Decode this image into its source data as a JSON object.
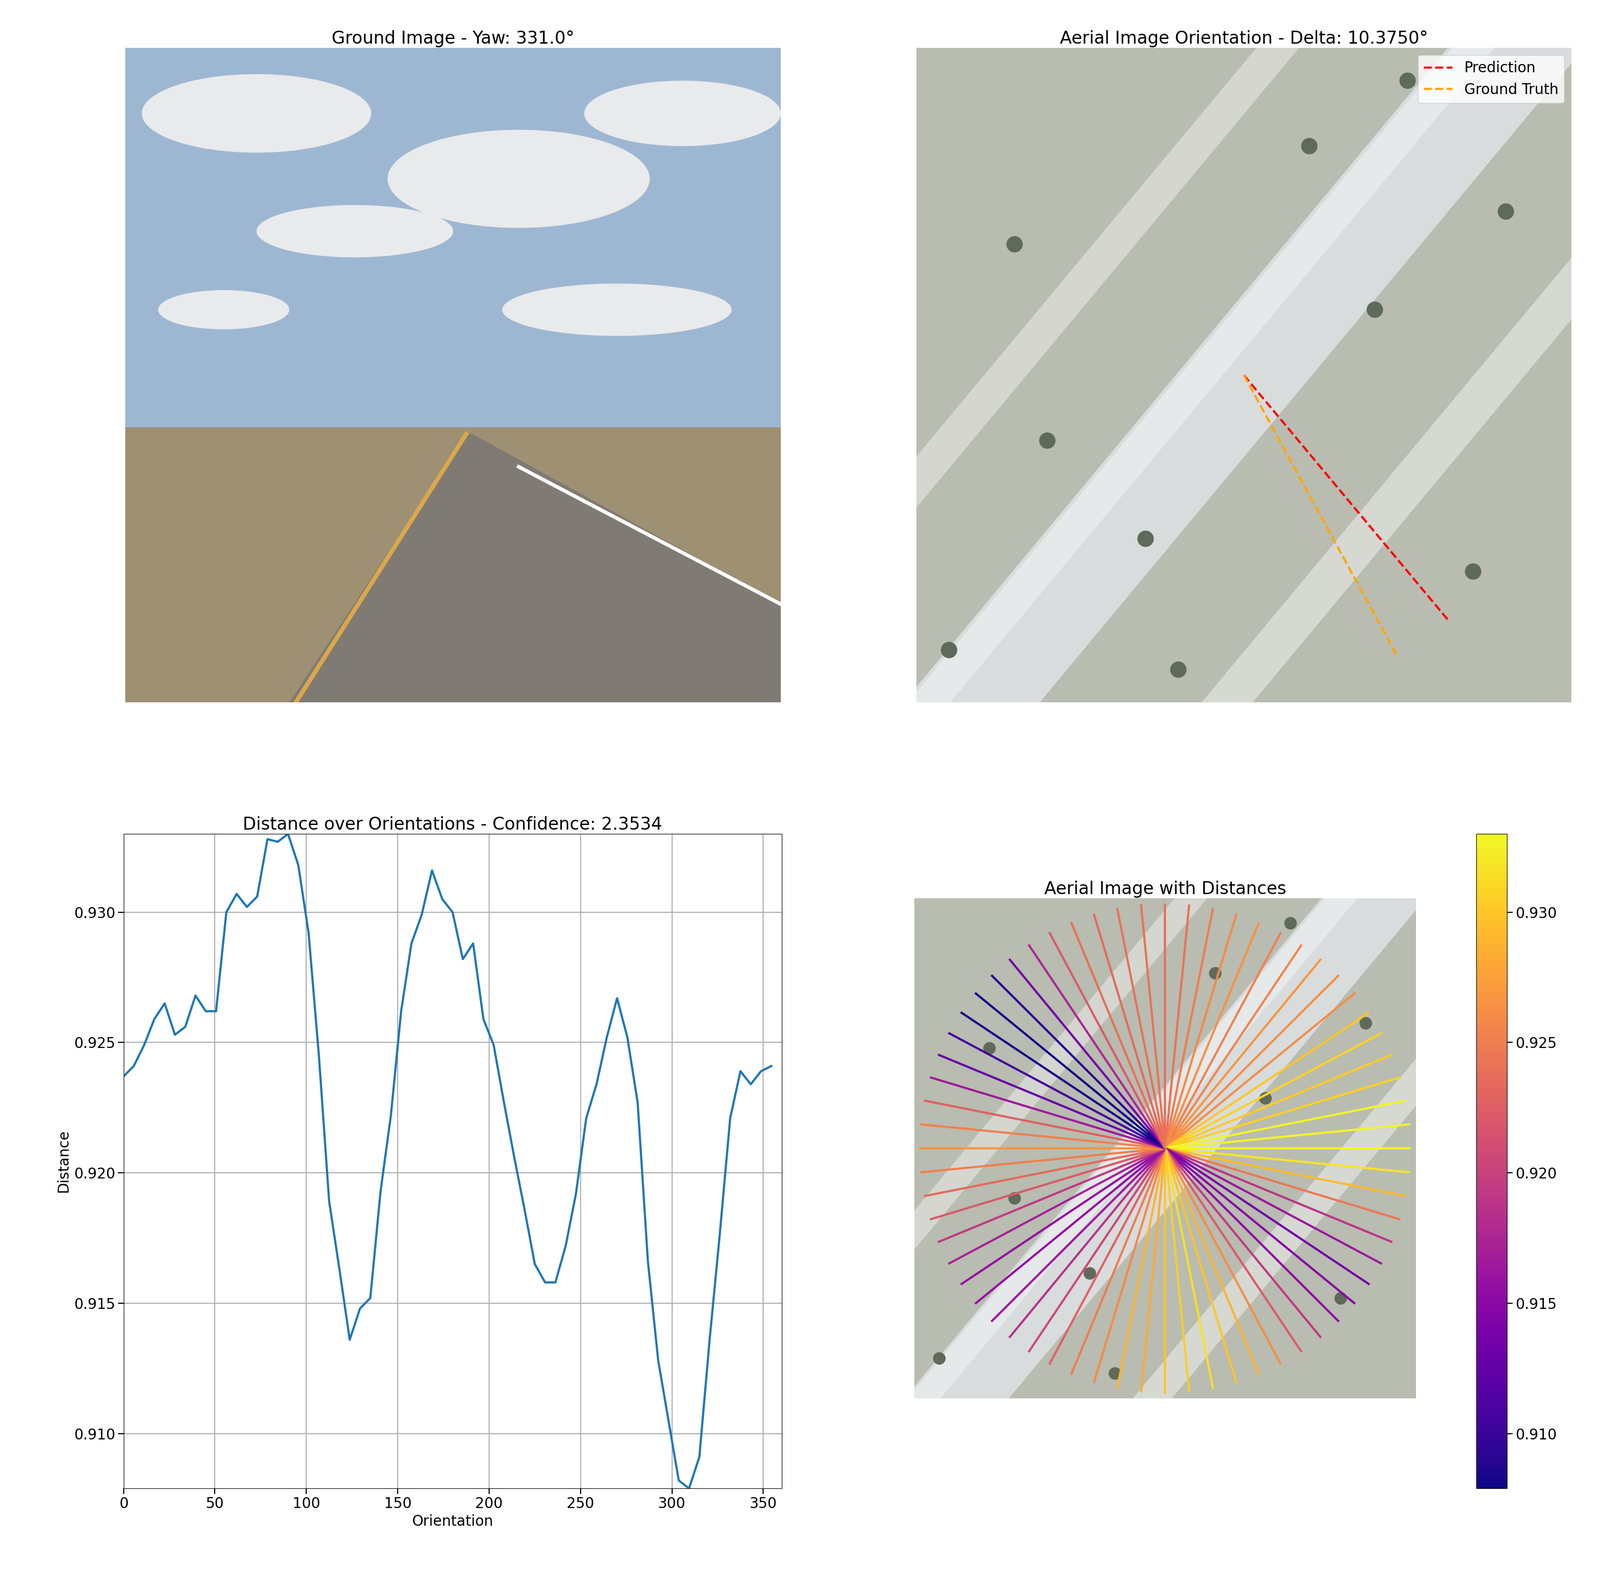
{
  "chart_data": [
    {
      "type": "image",
      "title": "Ground Image - Yaw: 331.0°"
    },
    {
      "type": "line",
      "title": "Aerial Image Orientation - Delta: 10.3750°",
      "series": [
        {
          "name": "Prediction",
          "color": "red",
          "line_style": "dashed",
          "x": [
            64,
            104
          ],
          "values": [
            64,
            112
          ]
        },
        {
          "name": "Ground Truth",
          "color": "orange",
          "line_style": "dashed",
          "x": [
            64,
            94
          ],
          "values": [
            64,
            119
          ]
        }
      ],
      "xlim": [
        0,
        128
      ],
      "ylim": [
        128,
        0
      ],
      "tick_labels": false,
      "legend": "upper right"
    },
    {
      "type": "line",
      "title": "Distance over Orientations - Confidence: 2.3534",
      "x_label": "Orientation",
      "y_label": "Distance",
      "color": "#1f77b4",
      "x": [
        0,
        5.625,
        11.25,
        16.875,
        22.5,
        28.125,
        33.75,
        39.375,
        45,
        50.625,
        56.25,
        61.875,
        67.5,
        73.125,
        78.75,
        84.375,
        90,
        95.625,
        101.25,
        106.875,
        112.5,
        118.125,
        123.75,
        129.375,
        135,
        140.625,
        146.25,
        151.875,
        157.5,
        163.125,
        168.75,
        174.375,
        180,
        185.625,
        191.25,
        196.875,
        202.5,
        208.125,
        213.75,
        219.375,
        225,
        230.625,
        236.25,
        241.875,
        247.5,
        253.125,
        258.75,
        264.375,
        270,
        275.625,
        281.25,
        286.875,
        292.5,
        298.125,
        303.75,
        309.375,
        315,
        320.625,
        326.25,
        331.875,
        337.5,
        343.125,
        348.75,
        354.375
      ],
      "values": [
        0.9237,
        0.9241,
        0.9249,
        0.9259,
        0.9265,
        0.9253,
        0.9256,
        0.9268,
        0.9262,
        0.9262,
        0.93,
        0.9307,
        0.9302,
        0.9306,
        0.9328,
        0.9327,
        0.933,
        0.9318,
        0.9292,
        0.9245,
        0.9189,
        0.9163,
        0.9136,
        0.9148,
        0.9152,
        0.9193,
        0.9222,
        0.9262,
        0.9288,
        0.9299,
        0.9316,
        0.9305,
        0.93,
        0.9282,
        0.9288,
        0.9259,
        0.9249,
        0.9227,
        0.9206,
        0.9186,
        0.9165,
        0.9158,
        0.9158,
        0.9172,
        0.9192,
        0.9221,
        0.9234,
        0.9252,
        0.9267,
        0.9252,
        0.9227,
        0.9166,
        0.9128,
        0.9105,
        0.9082,
        0.9079,
        0.9091,
        0.9136,
        0.9177,
        0.9221,
        0.9239,
        0.9234,
        0.9239,
        0.9241
      ],
      "xlim": [
        0,
        360
      ],
      "ylim": [
        0.9079,
        0.933
      ],
      "xticks": [
        0,
        50,
        100,
        150,
        200,
        250,
        300,
        350
      ],
      "yticks": [
        {
          "value": 0.91,
          "label": "0.910"
        },
        0.915,
        {
          "value": 0.92,
          "label": "0.920"
        },
        0.925,
        {
          "value": 0.93,
          "label": "0.930"
        }
      ],
      "grid": true
    },
    {
      "type": "radial",
      "title": "Aerial Image with Distances",
      "color": "plasma",
      "x": [
        0,
        5.625,
        11.25,
        16.875,
        22.5,
        28.125,
        33.75,
        39.375,
        45,
        50.625,
        56.25,
        61.875,
        67.5,
        73.125,
        78.75,
        84.375,
        90,
        95.625,
        101.25,
        106.875,
        112.5,
        118.125,
        123.75,
        129.375,
        135,
        140.625,
        146.25,
        151.875,
        157.5,
        163.125,
        168.75,
        174.375,
        180,
        185.625,
        191.25,
        196.875,
        202.5,
        208.125,
        213.75,
        219.375,
        225,
        230.625,
        236.25,
        241.875,
        247.5,
        253.125,
        258.75,
        264.375,
        270,
        275.625,
        281.25,
        286.875,
        292.5,
        298.125,
        303.75,
        309.375,
        315,
        320.625,
        326.25,
        331.875,
        337.5,
        343.125,
        348.75,
        354.375
      ],
      "values": [
        0.9237,
        0.9241,
        0.9249,
        0.9259,
        0.9265,
        0.9253,
        0.9256,
        0.9268,
        0.9262,
        0.9262,
        0.93,
        0.9307,
        0.9302,
        0.9306,
        0.9328,
        0.9327,
        0.933,
        0.9318,
        0.9292,
        0.9245,
        0.9189,
        0.9163,
        0.9136,
        0.9148,
        0.9152,
        0.9193,
        0.9222,
        0.9262,
        0.9288,
        0.9299,
        0.9316,
        0.9305,
        0.93,
        0.9282,
        0.9288,
        0.9259,
        0.9249,
        0.9227,
        0.9206,
        0.9186,
        0.9165,
        0.9158,
        0.9158,
        0.9172,
        0.9192,
        0.9221,
        0.9234,
        0.9252,
        0.9267,
        0.9252,
        0.9227,
        0.9166,
        0.9128,
        0.9105,
        0.9082,
        0.9079,
        0.9091,
        0.9136,
        0.9177,
        0.9221,
        0.9239,
        0.9234,
        0.9239,
        0.9241
      ],
      "xlim": [
        0,
        128
      ],
      "ylim": [
        128,
        0
      ],
      "tick_labels": false,
      "colorbar_range": [
        0.9079,
        0.933
      ],
      "colorbar_ticks": [
        {
          "value": 0.91,
          "label": "0.910"
        },
        0.915,
        {
          "value": 0.92,
          "label": "0.920"
        },
        0.925,
        {
          "value": 0.93,
          "label": "0.930"
        }
      ]
    }
  ]
}
